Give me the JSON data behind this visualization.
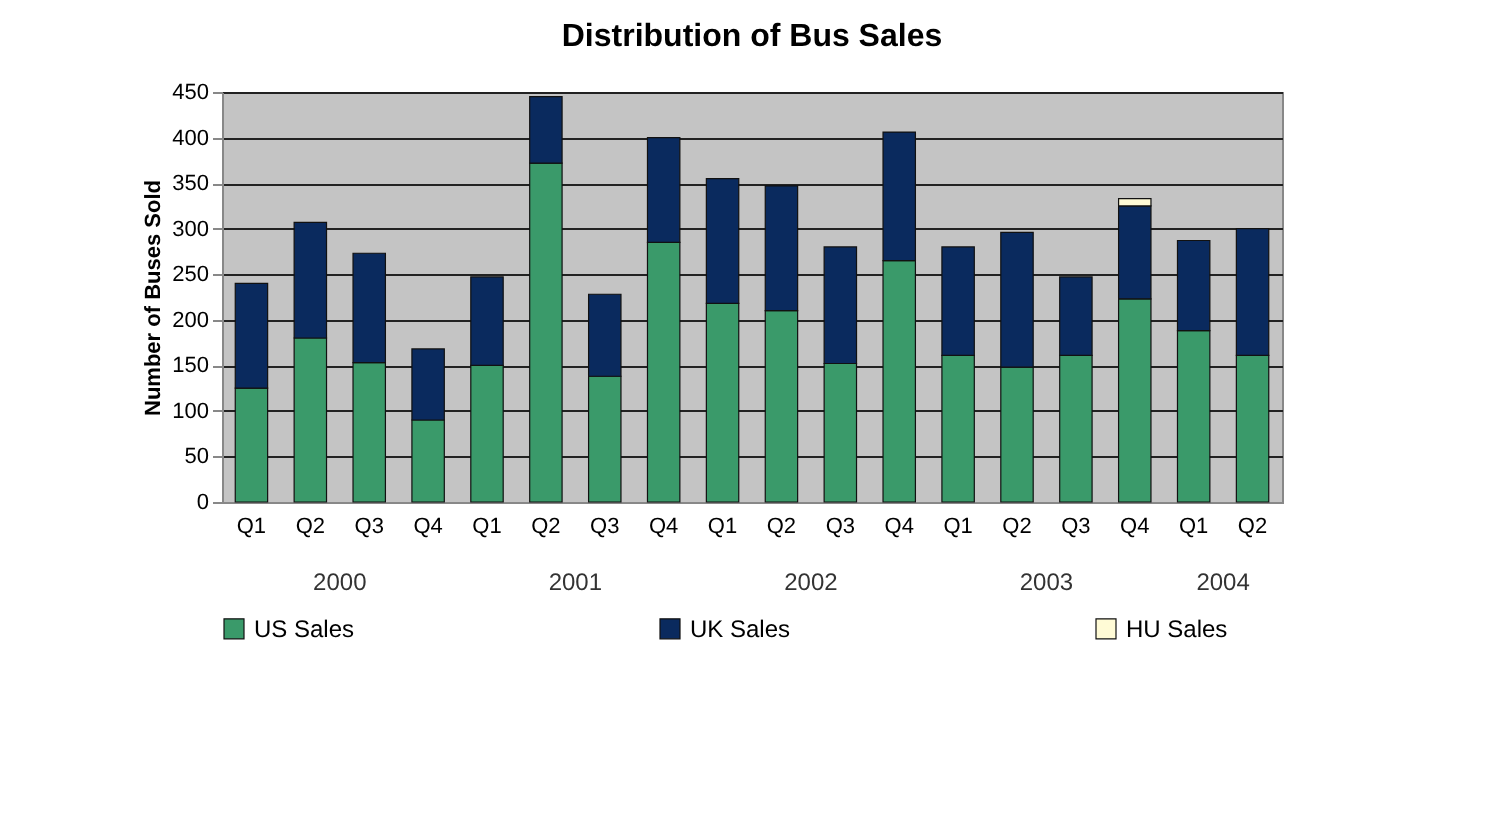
{
  "chart_data": {
    "type": "bar",
    "title": "Distribution of Bus Sales",
    "ylabel": "Number of Buses Sold",
    "categories": [
      "Q1",
      "Q2",
      "Q3",
      "Q4",
      "Q1",
      "Q2",
      "Q3",
      "Q4",
      "Q1",
      "Q2",
      "Q3",
      "Q4",
      "Q1",
      "Q2",
      "Q3",
      "Q4",
      "Q1",
      "Q2"
    ],
    "series": [
      {
        "name": "US Sales",
        "color": "#3a9a6a",
        "values": [
          125,
          180,
          153,
          90,
          150,
          372,
          138,
          285,
          218,
          210,
          152,
          265,
          161,
          148,
          161,
          223,
          188,
          161
        ]
      },
      {
        "name": "UK Sales",
        "color": "#0a2a5e",
        "values": [
          115,
          127,
          120,
          78,
          97,
          73,
          90,
          115,
          137,
          137,
          128,
          141,
          119,
          148,
          86,
          102,
          99,
          139
        ]
      },
      {
        "name": "HU Sales",
        "color": "#fffbd6",
        "values": [
          null,
          null,
          null,
          null,
          null,
          null,
          null,
          null,
          null,
          null,
          null,
          null,
          null,
          null,
          null,
          8,
          null,
          null
        ]
      }
    ],
    "stacked": true,
    "ylim": [
      0,
      450
    ],
    "yticks": [
      0,
      50,
      100,
      150,
      200,
      250,
      300,
      350,
      400,
      450
    ],
    "grid": "y",
    "legend": "bottom",
    "annotations": [
      "2000",
      "2001",
      "2002",
      "2003",
      "2004"
    ]
  }
}
